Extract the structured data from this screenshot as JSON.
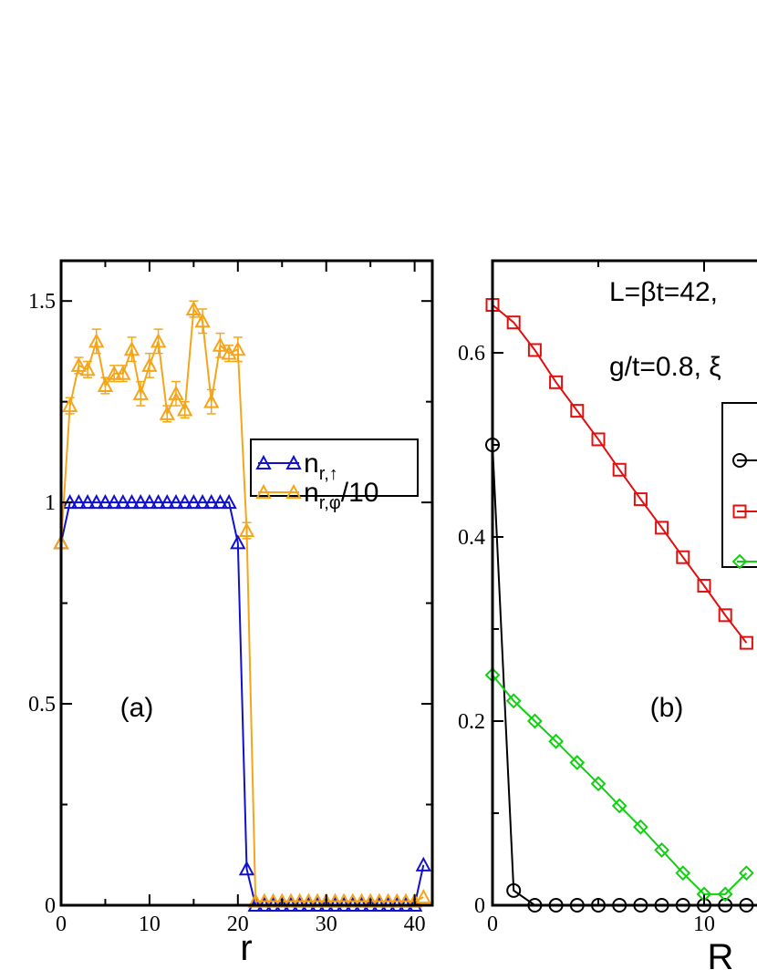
{
  "chart_data": [
    {
      "type": "line",
      "panel_label": "(a)",
      "xlabel": "r",
      "ylabel": "",
      "xlim": [
        0,
        42
      ],
      "ylim": [
        0,
        1.6
      ],
      "xticks": [
        "0",
        "10",
        "20",
        "30",
        "40"
      ],
      "yticks": [
        "0",
        "0.5",
        "1",
        "1.5"
      ],
      "legend": {
        "position": "top-right"
      },
      "series": [
        {
          "name": "n_{r,↑}",
          "name_main": "n",
          "name_sub": "r,↑",
          "name_tail": "",
          "color": "#1010d0",
          "marker": "triangle",
          "x": [
            0,
            1,
            2,
            3,
            4,
            5,
            6,
            7,
            8,
            9,
            10,
            11,
            12,
            13,
            14,
            15,
            16,
            17,
            18,
            19,
            20,
            21,
            22,
            23,
            24,
            25,
            26,
            27,
            28,
            29,
            30,
            31,
            32,
            33,
            34,
            35,
            36,
            37,
            38,
            39,
            40,
            41
          ],
          "values": [
            0.9,
            1.0,
            1.0,
            1.0,
            1.0,
            1.0,
            1.0,
            1.0,
            1.0,
            1.0,
            1.0,
            1.0,
            1.0,
            1.0,
            1.0,
            1.0,
            1.0,
            1.0,
            1.0,
            1.0,
            0.9,
            0.09,
            0.0,
            0.0,
            0.0,
            0.0,
            0.0,
            0.0,
            0.0,
            0.0,
            0.0,
            0.0,
            0.0,
            0.0,
            0.0,
            0.0,
            0.0,
            0.0,
            0.0,
            0.0,
            0.0,
            0.1
          ]
        },
        {
          "name": "n_{r,φ}/10",
          "name_main": "n",
          "name_sub": "r,φ",
          "name_tail": "/10",
          "color": "#f5a51a",
          "marker": "triangle",
          "x": [
            0,
            1,
            2,
            3,
            4,
            5,
            6,
            7,
            8,
            9,
            10,
            11,
            12,
            13,
            14,
            15,
            16,
            17,
            18,
            19,
            20,
            21,
            22,
            23,
            24,
            25,
            26,
            27,
            28,
            29,
            30,
            31,
            32,
            33,
            34,
            35,
            36,
            37,
            38,
            39,
            40,
            41
          ],
          "values": [
            0.9,
            1.24,
            1.34,
            1.33,
            1.4,
            1.29,
            1.32,
            1.32,
            1.38,
            1.27,
            1.34,
            1.4,
            1.22,
            1.27,
            1.23,
            1.48,
            1.45,
            1.25,
            1.39,
            1.37,
            1.38,
            0.93,
            0.01,
            0.01,
            0.01,
            0.01,
            0.01,
            0.01,
            0.01,
            0.01,
            0.01,
            0.01,
            0.01,
            0.01,
            0.01,
            0.01,
            0.01,
            0.01,
            0.01,
            0.01,
            0.01,
            0.02
          ],
          "errors": [
            0.0,
            0.02,
            0.02,
            0.02,
            0.03,
            0.02,
            0.02,
            0.02,
            0.03,
            0.03,
            0.03,
            0.03,
            0.02,
            0.03,
            0.02,
            0.02,
            0.03,
            0.03,
            0.03,
            0.02,
            0.03,
            0.02,
            0.0,
            0.0,
            0.0,
            0.0,
            0.0,
            0.0,
            0.0,
            0.0,
            0.0,
            0.0,
            0.0,
            0.0,
            0.0,
            0.0,
            0.0,
            0.0,
            0.0,
            0.0,
            0.0,
            0.0
          ]
        }
      ]
    },
    {
      "type": "line",
      "panel_label": "(b)",
      "xlabel": "R",
      "ylabel": "",
      "xlim": [
        0,
        12.3
      ],
      "ylim": [
        0,
        0.7
      ],
      "xticks": [
        "0",
        "10"
      ],
      "yticks": [
        "0",
        "0.2",
        "0.4",
        "0.6"
      ],
      "annotations": [
        "L=βt=42,",
        "g/t=0.8, ξ"
      ],
      "legend": {
        "position": "top-right"
      },
      "series": [
        {
          "color": "#000000",
          "marker": "circle",
          "x": [
            0,
            1,
            2,
            3,
            4,
            5,
            6,
            7,
            8,
            9,
            10,
            11,
            12
          ],
          "values": [
            0.5,
            0.016,
            0.0,
            0.0,
            0.0,
            0.0,
            0.0,
            0.0,
            0.0,
            0.0,
            0.0,
            0.0,
            0.0
          ]
        },
        {
          "color": "#e01010",
          "marker": "square",
          "x": [
            0,
            1,
            2,
            3,
            4,
            5,
            6,
            7,
            8,
            9,
            10,
            11,
            12
          ],
          "values": [
            0.652,
            0.633,
            0.603,
            0.568,
            0.537,
            0.506,
            0.473,
            0.441,
            0.41,
            0.378,
            0.347,
            0.315,
            0.285
          ]
        },
        {
          "color": "#10d010",
          "marker": "diamond",
          "x": [
            0,
            1,
            2,
            3,
            4,
            5,
            6,
            7,
            8,
            9,
            10,
            11,
            12
          ],
          "values": [
            0.25,
            0.222,
            0.2,
            0.178,
            0.155,
            0.132,
            0.108,
            0.085,
            0.06,
            0.035,
            0.012,
            0.012,
            0.035
          ]
        }
      ]
    }
  ]
}
